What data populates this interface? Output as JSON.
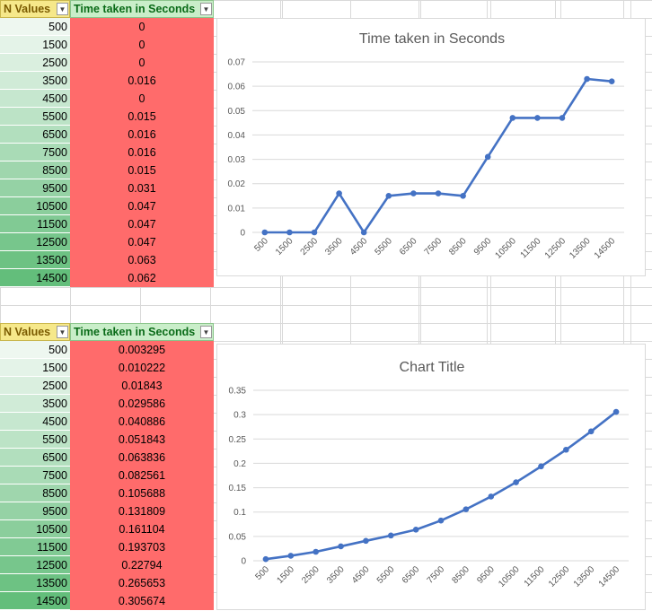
{
  "table1": {
    "header_n": "N Values",
    "header_t": "Time taken in Seconds",
    "n_values": [
      "500",
      "1500",
      "2500",
      "3500",
      "4500",
      "5500",
      "6500",
      "7500",
      "8500",
      "9500",
      "10500",
      "11500",
      "12500",
      "13500",
      "14500"
    ],
    "t_values": [
      "0",
      "0",
      "0",
      "0.016",
      "0",
      "0.015",
      "0.016",
      "0.016",
      "0.015",
      "0.031",
      "0.047",
      "0.047",
      "0.047",
      "0.063",
      "0.062"
    ]
  },
  "table2": {
    "header_n": "N Values",
    "header_t": "Time taken in Seconds",
    "n_values": [
      "500",
      "1500",
      "2500",
      "3500",
      "4500",
      "5500",
      "6500",
      "7500",
      "8500",
      "9500",
      "10500",
      "11500",
      "12500",
      "13500",
      "14500"
    ],
    "t_values": [
      "0.003295",
      "0.010222",
      "0.01843",
      "0.029586",
      "0.040886",
      "0.051843",
      "0.063836",
      "0.082561",
      "0.105688",
      "0.131809",
      "0.161104",
      "0.193703",
      "0.22794",
      "0.265653",
      "0.305674"
    ]
  },
  "colors": {
    "series_line": "#4472c4",
    "time_cell_fill": "#ff6b6b",
    "n_scale_light": "#eef7f0",
    "n_scale_dark": "#63be7b"
  },
  "chart_data": [
    {
      "type": "line",
      "title": "Time taken in Seconds",
      "categories": [
        "500",
        "1500",
        "2500",
        "3500",
        "4500",
        "5500",
        "6500",
        "7500",
        "8500",
        "9500",
        "10500",
        "11500",
        "12500",
        "13500",
        "14500"
      ],
      "values": [
        0,
        0,
        0,
        0.016,
        0,
        0.015,
        0.016,
        0.016,
        0.015,
        0.031,
        0.047,
        0.047,
        0.047,
        0.063,
        0.062
      ],
      "yticks": [
        "0",
        "0.01",
        "0.02",
        "0.03",
        "0.04",
        "0.05",
        "0.06",
        "0.07"
      ],
      "ylim": [
        0,
        0.07
      ],
      "grid": true
    },
    {
      "type": "line",
      "title": "Chart Title",
      "categories": [
        "500",
        "1500",
        "2500",
        "3500",
        "4500",
        "5500",
        "6500",
        "7500",
        "8500",
        "9500",
        "10500",
        "11500",
        "12500",
        "13500",
        "14500"
      ],
      "values": [
        0.003295,
        0.010222,
        0.01843,
        0.029586,
        0.040886,
        0.051843,
        0.063836,
        0.082561,
        0.105688,
        0.131809,
        0.161104,
        0.193703,
        0.22794,
        0.265653,
        0.305674
      ],
      "yticks": [
        "0",
        "0.05",
        "0.1",
        "0.15",
        "0.2",
        "0.25",
        "0.3",
        "0.35"
      ],
      "ylim": [
        0,
        0.35
      ],
      "grid": true
    }
  ]
}
